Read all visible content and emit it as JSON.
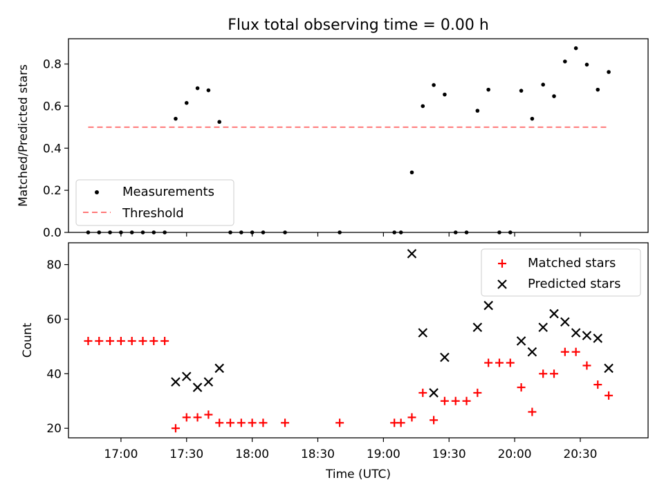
{
  "chart_data": [
    {
      "type": "scatter",
      "title": "Flux total observing time = 0.00 h",
      "xlabel": "",
      "ylabel": "Matched/Predicted stars",
      "ylim": [
        0,
        0.92
      ],
      "yticks": [
        "0.0",
        "0.2",
        "0.4",
        "0.6",
        "0.8"
      ],
      "grid": false,
      "legend_position": "lower-left",
      "series": [
        {
          "name": "Measurements",
          "color": "#000000",
          "marker": "dot",
          "x": [
            "16:45",
            "16:50",
            "16:55",
            "17:00",
            "17:05",
            "17:10",
            "17:15",
            "17:20",
            "17:25",
            "17:30",
            "17:35",
            "17:40",
            "17:45",
            "17:50",
            "17:55",
            "18:00",
            "18:05",
            "18:15",
            "18:40",
            "19:05",
            "19:08",
            "19:13",
            "19:18",
            "19:23",
            "19:28",
            "19:33",
            "19:38",
            "19:43",
            "19:48",
            "19:53",
            "19:58",
            "20:03",
            "20:08",
            "20:13",
            "20:18",
            "20:23",
            "20:28",
            "20:33",
            "20:38",
            "20:43"
          ],
          "values": [
            0.0,
            0.0,
            0.0,
            0.0,
            0.0,
            0.0,
            0.0,
            0.0,
            0.54,
            0.615,
            0.685,
            0.675,
            0.525,
            0.0,
            0.0,
            0.0,
            0.0,
            0.0,
            0.0,
            0.0,
            0.0,
            0.285,
            0.6,
            0.7,
            0.655,
            0.0,
            0.0,
            0.578,
            0.678,
            0.0,
            0.0,
            0.673,
            0.54,
            0.702,
            0.647,
            0.812,
            0.875,
            0.797,
            0.678,
            0.762
          ]
        },
        {
          "name": "Threshold",
          "color": "#ff7777",
          "style": "dashed",
          "x": [
            "16:45",
            "20:43"
          ],
          "values": [
            0.5,
            0.5
          ]
        }
      ]
    },
    {
      "type": "scatter",
      "title": "",
      "xlabel": "Time (UTC)",
      "ylabel": "Count",
      "ylim": [
        16.5,
        88
      ],
      "yticks": [
        "20",
        "40",
        "60",
        "80"
      ],
      "xlim": [
        "16:36",
        "21:01"
      ],
      "xticks": [
        "17:00",
        "17:30",
        "18:00",
        "18:30",
        "19:00",
        "19:30",
        "20:00",
        "20:30"
      ],
      "grid": false,
      "legend_position": "top-right",
      "series": [
        {
          "name": "Matched stars",
          "color": "#ff0000",
          "marker": "plus",
          "x": [
            "16:45",
            "16:50",
            "16:55",
            "17:00",
            "17:05",
            "17:10",
            "17:15",
            "17:20",
            "17:25",
            "17:30",
            "17:35",
            "17:40",
            "17:45",
            "17:50",
            "17:55",
            "18:00",
            "18:05",
            "18:15",
            "18:40",
            "19:05",
            "19:08",
            "19:13",
            "19:18",
            "19:23",
            "19:28",
            "19:33",
            "19:38",
            "19:43",
            "19:48",
            "19:53",
            "19:58",
            "20:03",
            "20:08",
            "20:13",
            "20:18",
            "20:23",
            "20:28",
            "20:33",
            "20:38",
            "20:43"
          ],
          "values": [
            52,
            52,
            52,
            52,
            52,
            52,
            52,
            52,
            20,
            24,
            24,
            25,
            22,
            22,
            22,
            22,
            22,
            22,
            22,
            22,
            22,
            24,
            33,
            23,
            30,
            30,
            30,
            33,
            44,
            44,
            44,
            35,
            26,
            40,
            40,
            48,
            48,
            43,
            36,
            32
          ]
        },
        {
          "name": "Predicted stars",
          "color": "#000000",
          "marker": "x",
          "x": [
            "17:25",
            "17:30",
            "17:35",
            "17:40",
            "17:45",
            "19:13",
            "19:18",
            "19:23",
            "19:28",
            "19:43",
            "19:48",
            "20:03",
            "20:08",
            "20:13",
            "20:18",
            "20:23",
            "20:28",
            "20:33",
            "20:38",
            "20:43"
          ],
          "values": [
            37,
            39,
            35,
            37,
            42,
            84,
            55,
            33,
            46,
            57,
            65,
            52,
            48,
            57,
            62,
            59,
            55,
            54,
            53,
            42
          ]
        }
      ]
    }
  ]
}
